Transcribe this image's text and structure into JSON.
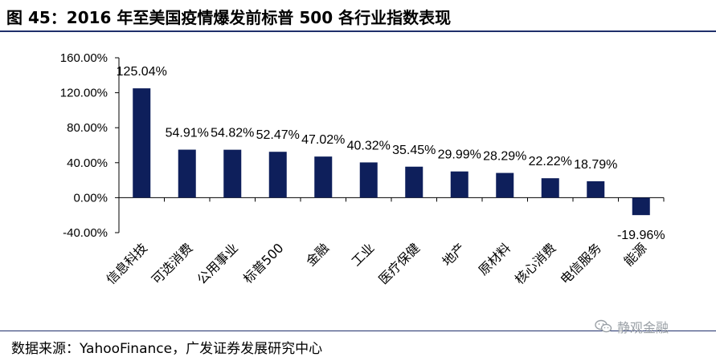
{
  "figure": {
    "title": "图 45：2016 年至美国疫情爆发前标普 500 各行业指数表现",
    "source": "数据来源：YahooFinance，广发证券发展研究中心",
    "watermark": "静观金融"
  },
  "colors": {
    "bar": "#0e1f5b",
    "rule": "#1f2f6b"
  },
  "chart_data": {
    "type": "bar",
    "categories": [
      "信息科技",
      "可选消费",
      "公用事业",
      "标普500",
      "金融",
      "工业",
      "医疗保健",
      "地产",
      "原材料",
      "核心消费",
      "电信服务",
      "能源"
    ],
    "values": [
      125.04,
      54.91,
      54.82,
      52.47,
      47.02,
      40.32,
      35.45,
      29.99,
      28.29,
      22.22,
      18.79,
      -19.96
    ],
    "data_labels": [
      "125.04%",
      "54.91%",
      "54.82%",
      "52.47%",
      "47.02%",
      "40.32%",
      "35.45%",
      "29.99%",
      "28.29%",
      "22.22%",
      "18.79%",
      "-19.96%"
    ],
    "y_ticks": [
      "160.00%",
      "120.00%",
      "80.00%",
      "40.00%",
      "0.00%",
      "-40.00%"
    ],
    "y_tick_values": [
      160,
      120,
      80,
      40,
      0,
      -40
    ],
    "ylim": [
      -40,
      160
    ],
    "title": "",
    "xlabel": "",
    "ylabel": "",
    "grid": false,
    "legend": false
  }
}
